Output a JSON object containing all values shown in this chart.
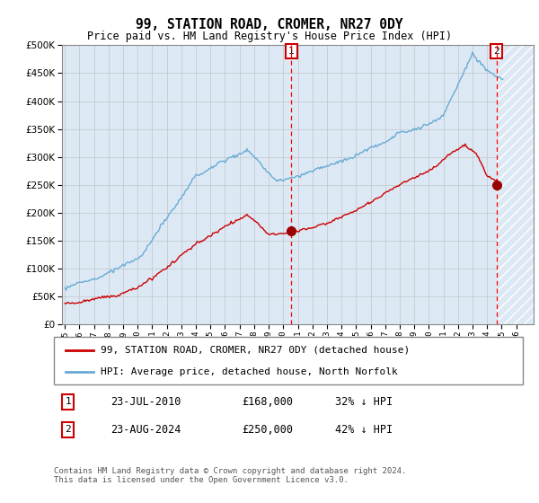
{
  "title": "99, STATION ROAD, CROMER, NR27 0DY",
  "subtitle": "Price paid vs. HM Land Registry's House Price Index (HPI)",
  "legend_line1": "99, STATION ROAD, CROMER, NR27 0DY (detached house)",
  "legend_line2": "HPI: Average price, detached house, North Norfolk",
  "footer": "Contains HM Land Registry data © Crown copyright and database right 2024.\nThis data is licensed under the Open Government Licence v3.0.",
  "transaction1_date": "23-JUL-2010",
  "transaction1_price": "£168,000",
  "transaction1_hpi": "32% ↓ HPI",
  "transaction1_year": 2010.56,
  "transaction1_value": 168000,
  "transaction2_date": "23-AUG-2024",
  "transaction2_price": "£250,000",
  "transaction2_hpi": "42% ↓ HPI",
  "transaction2_year": 2024.64,
  "transaction2_value": 250000,
  "hatch_start_year": 2024.64,
  "hatch_end_year": 2027.0,
  "ymin": 0,
  "ymax": 500000,
  "xmin": 1994.8,
  "xmax": 2027.2,
  "background_color": "#dce9f5",
  "red_color": "#cc0000",
  "blue_color": "#6aaad4",
  "grid_color": "#bbbbbb"
}
